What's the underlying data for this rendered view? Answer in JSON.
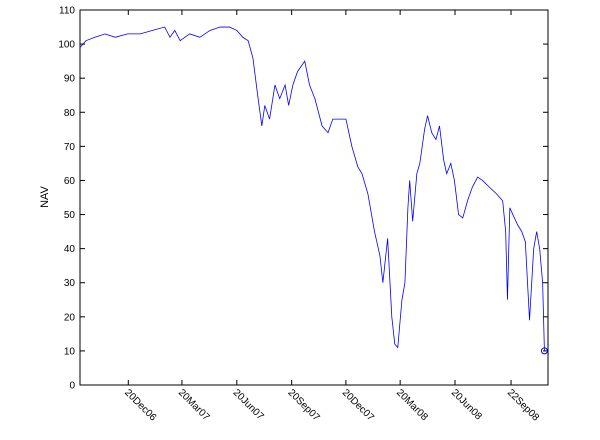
{
  "chart_data": {
    "type": "line",
    "y_label": "NAV",
    "x": [
      732950,
      732960,
      732975,
      732992,
      733009,
      733030,
      733051,
      733071,
      733092,
      733101,
      733109,
      733118,
      733134,
      733151,
      733168,
      733185,
      733201,
      733213,
      733223,
      733232,
      733240,
      733248,
      733255,
      733260,
      733268,
      733277,
      733285,
      733294,
      733300,
      733307,
      733315,
      733327,
      733335,
      733344,
      733356,
      733366,
      733374,
      733386,
      733396,
      733406,
      733416,
      733423,
      733433,
      733444,
      733453,
      733458,
      733466,
      733473,
      733478,
      733483,
      733490,
      733495,
      733500,
      733503,
      733508,
      733515,
      733520,
      733528,
      733533,
      733540,
      733547,
      733553,
      733560,
      733565,
      733572,
      733578,
      733585,
      733592,
      733600,
      733608,
      733617,
      733625,
      733637,
      733649,
      733659,
      733664,
      733667,
      733671,
      733676,
      733684,
      733691,
      733697,
      733704,
      733711,
      733716,
      733721,
      733726,
      733729
    ],
    "series": [
      {
        "name": "NAV",
        "color": "#0000ff",
        "values": [
          99,
          101,
          102,
          103,
          102,
          103,
          103,
          104,
          105,
          102,
          104,
          101,
          103,
          102,
          104,
          105,
          105,
          104,
          102,
          101,
          96,
          85,
          76,
          82,
          78,
          88,
          84,
          88,
          82,
          88,
          92,
          95,
          88,
          84,
          76,
          74,
          78,
          78,
          78,
          70,
          64,
          62,
          56,
          45,
          38,
          30,
          43,
          20,
          12,
          11,
          25,
          30,
          52,
          60,
          48,
          62,
          65,
          75,
          79,
          74,
          72,
          76,
          66,
          62,
          65,
          60,
          50,
          49,
          54,
          58,
          61,
          60,
          58,
          56,
          54,
          45,
          25,
          52,
          50,
          47,
          45,
          42,
          19,
          40,
          45,
          40,
          30,
          10
        ]
      }
    ],
    "end_marker": "circle",
    "xlim": [
      732950,
      733735
    ],
    "xticks": [
      {
        "value": 733031,
        "label": "20Dec06"
      },
      {
        "value": 733121,
        "label": "20Mar07"
      },
      {
        "value": 733213,
        "label": "20Jun07"
      },
      {
        "value": 733305,
        "label": "20Sep07"
      },
      {
        "value": 733396,
        "label": "20Dec07"
      },
      {
        "value": 733487,
        "label": "20Mar08"
      },
      {
        "value": 733579,
        "label": "20Jun08"
      },
      {
        "value": 733673,
        "label": "22Sep08"
      }
    ],
    "ylim": [
      0,
      110
    ],
    "yticks": [
      0,
      10,
      20,
      30,
      40,
      50,
      60,
      70,
      80,
      90,
      100,
      110
    ],
    "grid": false
  }
}
